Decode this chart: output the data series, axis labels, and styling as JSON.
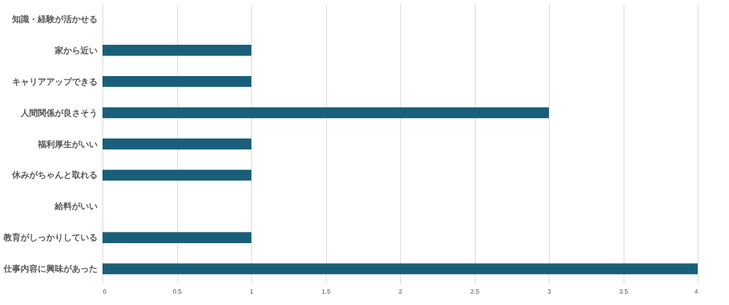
{
  "chart_data": {
    "type": "bar",
    "orientation": "horizontal",
    "categories": [
      "知識・経験が活かせる",
      "家から近い",
      "キャリアアップできる",
      "人間関係が良さそう",
      "福利厚生がいい",
      "休みがちゃんと取れる",
      "給料がいい",
      "教育がしっかりしている",
      "仕事内容に興味があった"
    ],
    "values": [
      0,
      1,
      1,
      3,
      1,
      1,
      0,
      1,
      4
    ],
    "color": "#1a5f7a",
    "xlim": [
      0,
      4
    ],
    "xticks": [
      0,
      0.5,
      1,
      1.5,
      2,
      2.5,
      3,
      3.5,
      4
    ],
    "grid": "x"
  }
}
